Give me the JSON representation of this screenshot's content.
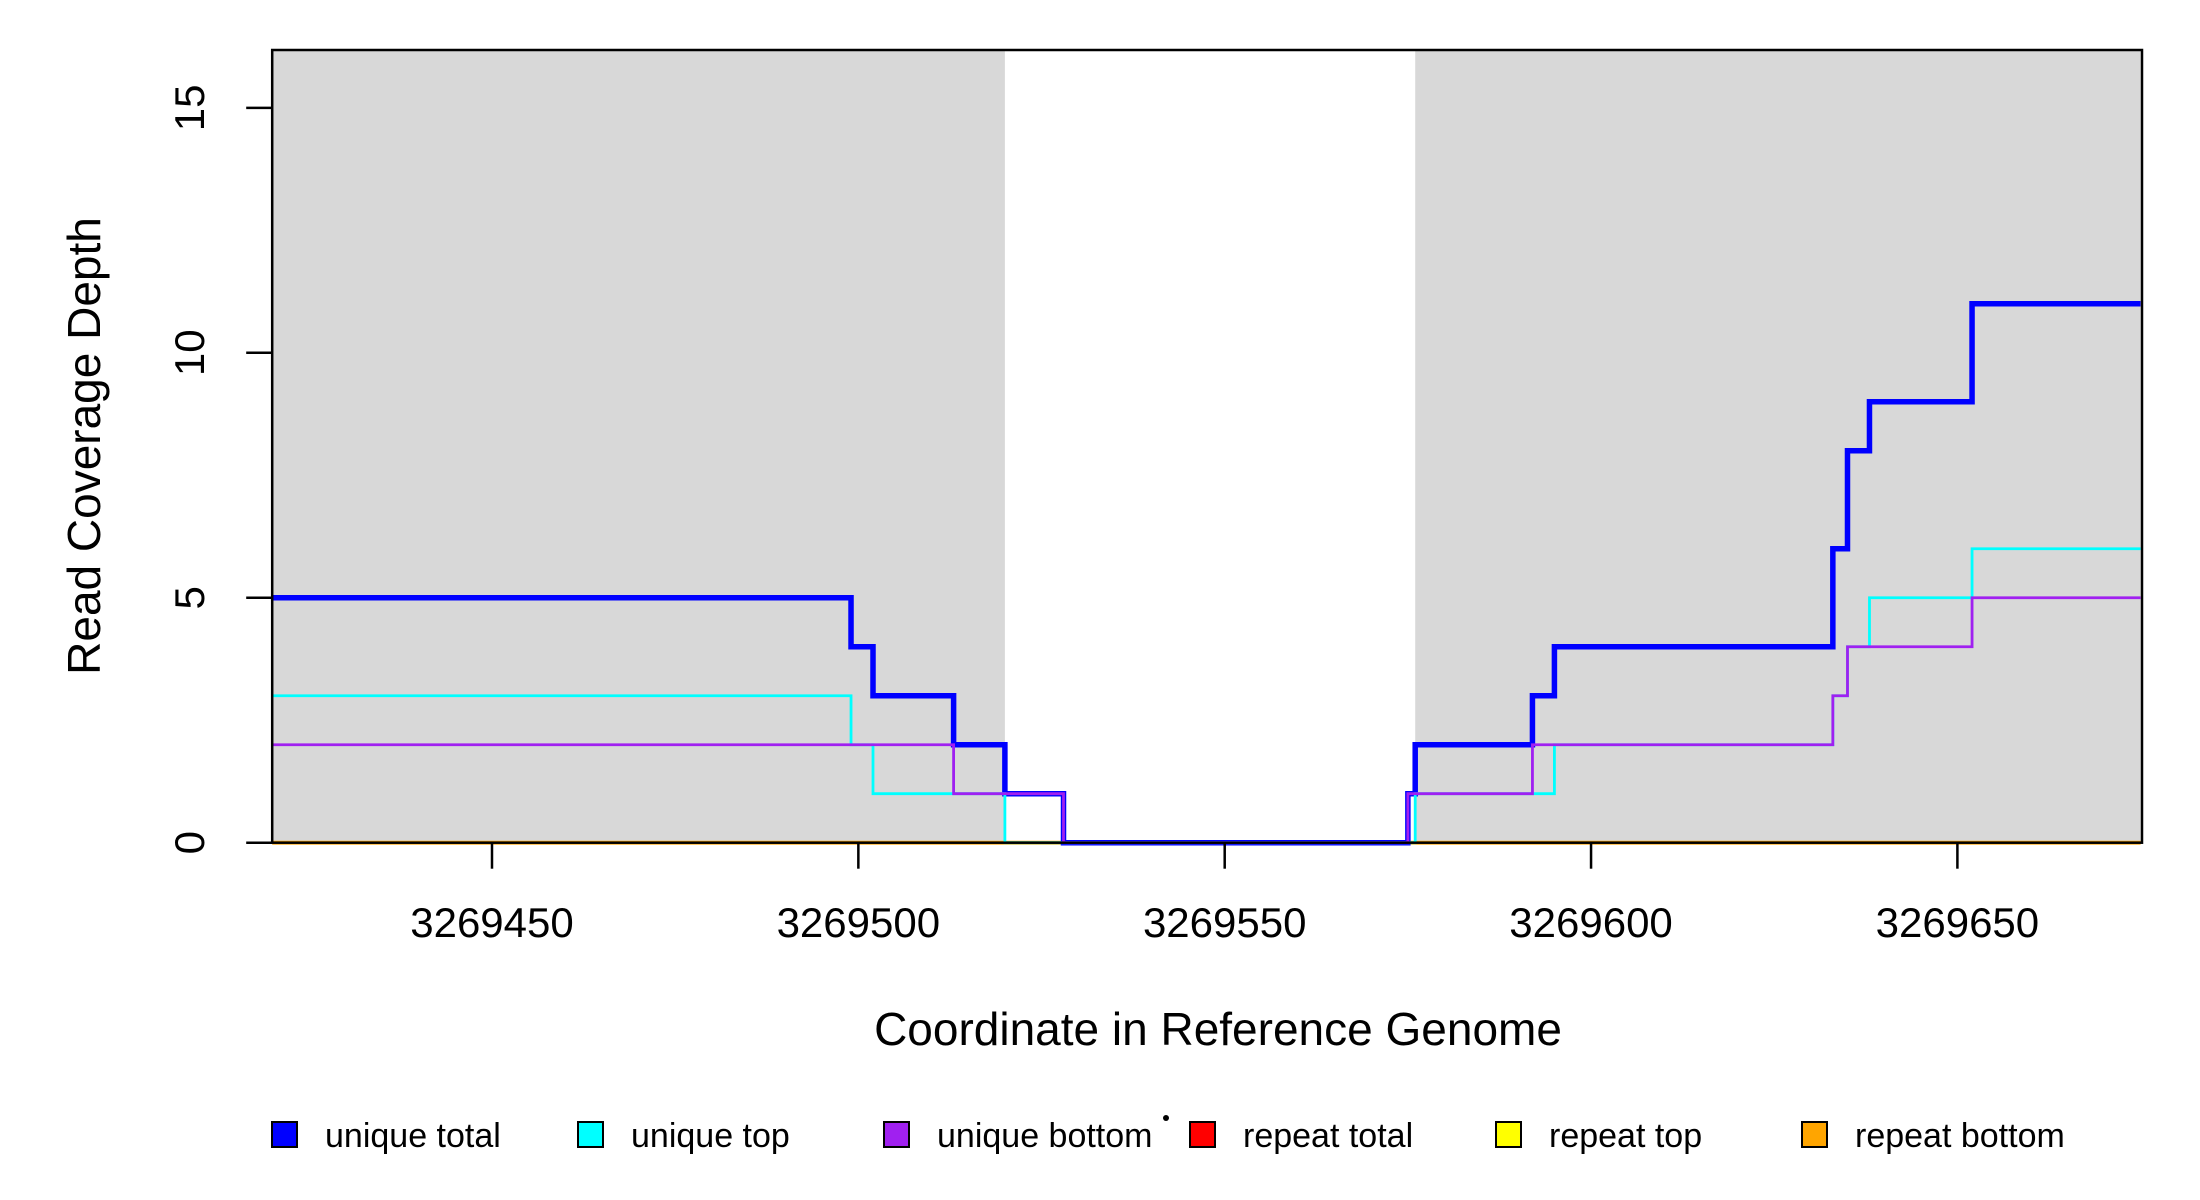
{
  "chart_data": {
    "type": "line",
    "subtype": "step-coverage-plot",
    "title": "",
    "xlabel": "Coordinate in Reference Genome",
    "ylabel": "Read Coverage Depth",
    "xlim": [
      3269420,
      3269675
    ],
    "ylim": [
      0,
      16.2
    ],
    "x_ticks": [
      {
        "value": 3269450,
        "label": "3269450"
      },
      {
        "value": 3269500,
        "label": "3269500"
      },
      {
        "value": 3269550,
        "label": "3269550"
      },
      {
        "value": 3269600,
        "label": "3269600"
      },
      {
        "value": 3269650,
        "label": "3269650"
      }
    ],
    "y_ticks": [
      {
        "value": 0,
        "label": "0"
      },
      {
        "value": 5,
        "label": "5"
      },
      {
        "value": 10,
        "label": "10"
      },
      {
        "value": 15,
        "label": "15"
      }
    ],
    "grid": false,
    "legend_position": "bottom-horizontal",
    "shade_color": "#D8D8D8",
    "shaded_regions": [
      {
        "x_from": 3269420,
        "x_to": 3269520
      },
      {
        "x_from": 3269576,
        "x_to": 3269675
      }
    ],
    "series": [
      {
        "name": "unique total",
        "color": "#0000FF",
        "line_width": 5.5,
        "steps": [
          [
            3269420,
            5
          ],
          [
            3269499,
            4
          ],
          [
            3269502,
            3
          ],
          [
            3269513,
            2
          ],
          [
            3269520,
            1
          ],
          [
            3269528,
            0
          ],
          [
            3269575,
            1
          ],
          [
            3269576,
            2
          ],
          [
            3269592,
            3
          ],
          [
            3269595,
            4
          ],
          [
            3269633,
            6
          ],
          [
            3269635,
            8
          ],
          [
            3269638,
            9
          ],
          [
            3269652,
            11
          ],
          [
            3269675,
            11
          ]
        ]
      },
      {
        "name": "unique top",
        "color": "#00FFFF",
        "line_width": 2.8,
        "steps": [
          [
            3269420,
            3
          ],
          [
            3269499,
            2
          ],
          [
            3269502,
            1
          ],
          [
            3269520,
            0
          ],
          [
            3269576,
            1
          ],
          [
            3269595,
            2
          ],
          [
            3269633,
            3
          ],
          [
            3269635,
            4
          ],
          [
            3269638,
            5
          ],
          [
            3269652,
            6
          ],
          [
            3269675,
            6
          ]
        ]
      },
      {
        "name": "unique bottom",
        "color": "#A020F0",
        "line_width": 2.8,
        "steps": [
          [
            3269420,
            2
          ],
          [
            3269513,
            1
          ],
          [
            3269528,
            0
          ],
          [
            3269575,
            1
          ],
          [
            3269592,
            2
          ],
          [
            3269633,
            3
          ],
          [
            3269635,
            4
          ],
          [
            3269652,
            5
          ],
          [
            3269675,
            5
          ]
        ]
      },
      {
        "name": "repeat total",
        "color": "#FF0000",
        "line_width": 2.8,
        "steps": [
          [
            3269420,
            0
          ],
          [
            3269675,
            0
          ]
        ]
      },
      {
        "name": "repeat top",
        "color": "#FFFF00",
        "line_width": 2.8,
        "steps": [
          [
            3269420,
            0
          ],
          [
            3269675,
            0
          ]
        ]
      },
      {
        "name": "repeat bottom",
        "color": "#FFA500",
        "line_width": 3.8,
        "steps": [
          [
            3269420,
            0
          ],
          [
            3269675,
            0
          ]
        ]
      }
    ],
    "draw_order": [
      "repeat total",
      "repeat top",
      "repeat bottom",
      "unique total",
      "unique top",
      "unique bottom"
    ],
    "legend": [
      {
        "label": "unique total",
        "color": "#0000FF"
      },
      {
        "label": "unique top",
        "color": "#00FFFF"
      },
      {
        "label": "unique bottom",
        "color": "#A020F0"
      },
      {
        "label": "repeat total",
        "color": "#FF0000"
      },
      {
        "label": "repeat top",
        "color": "#FFFF00"
      },
      {
        "label": "repeat bottom",
        "color": "#FFA500"
      }
    ]
  }
}
